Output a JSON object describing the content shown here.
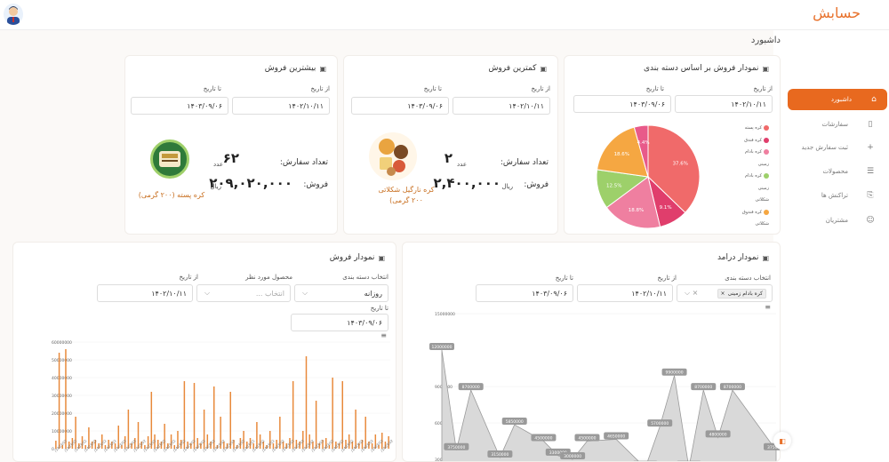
{
  "app": {
    "brand": "حسابش"
  },
  "breadcrumb": "داشبورد",
  "sidebar": {
    "items": [
      {
        "label": "داشبورد",
        "icon": "home-icon"
      },
      {
        "label": "سفارشات",
        "icon": "file-icon"
      },
      {
        "label": "ثبت سفارش جدید",
        "icon": "plus-icon"
      },
      {
        "label": "محصولات",
        "icon": "list-icon"
      },
      {
        "label": "تراکنش ها",
        "icon": "receipt-icon"
      },
      {
        "label": "مشتریان",
        "icon": "user-icon"
      }
    ]
  },
  "pie_card": {
    "title": "نمودار فروش بر اساس دسته بندی",
    "from_label": "از تاریخ",
    "to_label": "تا تاریخ",
    "from_value": "۱۴۰۲/۱۰/۱۱",
    "to_value": "۱۴۰۳/۰۹/۰۶",
    "legend": [
      {
        "label": "کره پسته",
        "color": "#f06a6a"
      },
      {
        "label": "کره فندق",
        "color": "#e03e6c"
      },
      {
        "label": "کره بادام",
        "color": "#ef7fa0"
      },
      {
        "label": "زمینی",
        "color": ""
      },
      {
        "label": "کره بادام",
        "color": "#9dd06a"
      },
      {
        "label": "زمینی",
        "color": ""
      },
      {
        "label": "شکلاتی",
        "color": ""
      },
      {
        "label": "کره فندوق",
        "color": "#f5a742"
      },
      {
        "label": "شکلاتی",
        "color": ""
      }
    ]
  },
  "min_card": {
    "title": "کمترین فروش",
    "from_label": "از تاریخ",
    "to_label": "تا تاریخ",
    "from_value": "۱۴۰۲/۱۰/۱۱",
    "to_value": "۱۴۰۳/۰۹/۰۶",
    "orders_label": "تعداد سفارش:",
    "orders_value": "۲",
    "orders_unit": "عدد",
    "sales_label": "فروش:",
    "sales_value": "۲,۴۰۰,۰۰۰",
    "sales_unit": "ریال",
    "product_line1": "کره نارگیل شکلاتی",
    "product_line2": "۲۰۰ گرمی)"
  },
  "max_card": {
    "title": "بیشترین فروش",
    "from_label": "از تاریخ",
    "to_label": "تا تاریخ",
    "from_value": "۱۴۰۲/۱۰/۱۱",
    "to_value": "۱۴۰۳/۰۹/۰۶",
    "orders_label": "تعداد سفارش:",
    "orders_value": "۶۲",
    "orders_unit": "عدد",
    "sales_label": "فروش:",
    "sales_value": "۲۰۹,۰۲۰,۰۰۰",
    "sales_unit": "ریال",
    "product": "کره پسته (۲۰۰ گرمی)"
  },
  "income_card": {
    "title": "نمودار درامد",
    "category_label": "انتخاب دسته بندی",
    "from_label": "از تاریخ",
    "to_label": "تا تاریخ",
    "chip": "کره بادام زمینی",
    "from_value": "۱۴۰۲/۱۰/۱۱",
    "to_value": "۱۴۰۳/۰۹/۰۶"
  },
  "sales_card": {
    "title": "نمودار فروش",
    "category_label": "انتخاب دسته بندی",
    "product_label": "محصول مورد نظر",
    "from_label": "از تاریخ",
    "to_label": "تا تاریخ",
    "category_value": "روزانه",
    "product_placeholder": "انتخاب ...",
    "from_value": "۱۴۰۲/۱۰/۱۱",
    "to_value": "۱۴۰۳/۰۹/۰۶"
  },
  "chart_data": [
    {
      "type": "pie",
      "slices": [
        {
          "label": "کره پسته",
          "value": 37.6,
          "color": "#f06a6a"
        },
        {
          "label": "کره فندق",
          "value": 9.1,
          "color": "#e03e6c"
        },
        {
          "label": "کره بادام زمینی",
          "value": 18.8,
          "color": "#ef7fa0"
        },
        {
          "label": "کره بادام زمینی شکلاتی",
          "value": 12.5,
          "color": "#9dd06a"
        },
        {
          "label": "کره فندوق شکلاتی",
          "value": 18.6,
          "color": "#f5a742"
        },
        {
          "label": "",
          "value": 4.4,
          "color": "#e85a8a"
        }
      ],
      "value_labels": [
        "37.6%",
        "9.1%",
        "18.8%",
        "12.5%",
        "18.6%",
        "4.4%"
      ]
    },
    {
      "type": "area",
      "y_ticks": [
        "15000000",
        "9000000",
        "6000000",
        "3000000"
      ],
      "ylim": [
        3000000,
        15000000
      ],
      "color": "#9a9a9a",
      "points": [
        {
          "x": 0,
          "y": 12000000,
          "label": "12000000"
        },
        {
          "x": 1,
          "y": 3750000,
          "label": "3750000"
        },
        {
          "x": 2,
          "y": 8700000,
          "label": "8700000"
        },
        {
          "x": 4,
          "y": 3150000,
          "label": "3150000"
        },
        {
          "x": 5,
          "y": 5850000,
          "label": "5850000"
        },
        {
          "x": 7,
          "y": 4500000,
          "label": "4500000"
        },
        {
          "x": 8,
          "y": 3300000,
          "label": "3300000"
        },
        {
          "x": 9,
          "y": 3000000,
          "label": "3000000"
        },
        {
          "x": 10,
          "y": 4500000,
          "label": "4500000"
        },
        {
          "x": 12,
          "y": 4650000,
          "label": "4650000"
        },
        {
          "x": 14,
          "y": 2300000,
          "label": "2300000"
        },
        {
          "x": 15,
          "y": 5700000,
          "label": "5700000"
        },
        {
          "x": 16,
          "y": 9900000,
          "label": "9900000"
        },
        {
          "x": 17,
          "y": 2300000,
          "label": "2300000"
        },
        {
          "x": 18,
          "y": 8700000,
          "label": "8700000"
        },
        {
          "x": 19,
          "y": 4800000,
          "label": "4800000"
        },
        {
          "x": 20,
          "y": 8700000,
          "label": "8700000"
        },
        {
          "x": 23,
          "y": 3750000,
          "label": "3750000"
        }
      ]
    },
    {
      "type": "bar",
      "y_ticks": [
        "60000000",
        "50000000",
        "40000000",
        "30000000",
        "20000000",
        "10000000",
        "0"
      ],
      "ylim": [
        0,
        60000000
      ],
      "color": "#e8893a",
      "values": [
        4500000,
        54000000,
        2000000,
        56000000,
        4000000,
        6000000,
        18000000,
        3000000,
        7000000,
        2000000,
        12000000,
        4000000,
        5000000,
        3000000,
        8000000,
        2000000,
        5000000,
        4000000,
        3000000,
        13000000,
        2000000,
        7000000,
        22000000,
        3000000,
        6000000,
        15000000,
        4000000,
        2000000,
        7000000,
        32000000,
        8000000,
        5000000,
        4000000,
        14000000,
        3000000,
        8000000,
        2000000,
        10000000,
        5000000,
        38000000,
        4000000,
        3000000,
        37000000,
        6000000,
        3000000,
        22000000,
        8000000,
        4000000,
        35000000,
        2000000,
        18000000,
        4000000,
        3000000,
        32000000,
        5000000,
        2000000,
        6000000,
        10000000,
        4000000,
        6000000,
        3000000,
        15000000,
        8000000,
        4000000,
        2000000,
        10000000,
        3000000,
        5000000,
        18000000,
        4000000,
        3000000,
        6000000,
        38000000,
        5000000,
        4000000,
        10000000,
        52000000,
        8000000,
        4000000,
        27000000,
        3000000,
        5000000,
        6000000,
        2000000,
        40000000,
        4000000,
        3000000,
        38000000,
        5000000,
        8000000,
        4000000,
        22000000,
        3000000,
        5000000,
        18000000,
        4000000,
        3000000,
        8000000,
        2000000,
        9000000,
        4000000,
        7000000
      ],
      "tick_label_sample": "1403/02/"
    }
  ]
}
